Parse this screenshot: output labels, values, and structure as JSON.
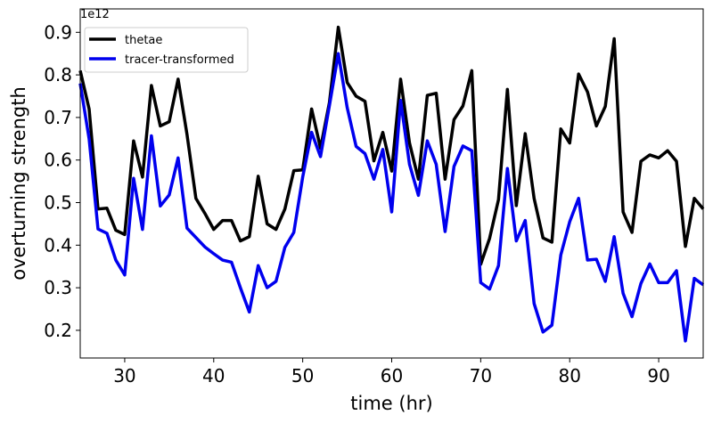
{
  "chart_data": {
    "type": "line",
    "title": "",
    "xlabel": "time (hr)",
    "ylabel": "overturning strength",
    "y_offset_label": "1e12",
    "xlim": [
      25,
      95
    ],
    "ylim": [
      0.135,
      0.955
    ],
    "x_ticks": [
      30,
      40,
      50,
      60,
      70,
      80,
      90
    ],
    "y_ticks": [
      0.2,
      0.3,
      0.4,
      0.5,
      0.6,
      0.7,
      0.8,
      0.9
    ],
    "x_tick_labels": [
      "30",
      "40",
      "50",
      "60",
      "70",
      "80",
      "90"
    ],
    "y_tick_labels": [
      "0.2",
      "0.3",
      "0.4",
      "0.5",
      "0.6",
      "0.7",
      "0.8",
      "0.9"
    ],
    "grid": false,
    "legend_position": "top-left",
    "x": [
      25,
      26,
      27,
      28,
      29,
      30,
      31,
      32,
      33,
      34,
      35,
      36,
      37,
      38,
      39,
      40,
      41,
      42,
      43,
      44,
      45,
      46,
      47,
      48,
      49,
      50,
      51,
      52,
      53,
      54,
      55,
      56,
      57,
      58,
      59,
      60,
      61,
      62,
      63,
      64,
      65,
      66,
      67,
      68,
      69,
      70,
      71,
      72,
      73,
      74,
      75,
      76,
      77,
      78,
      79,
      80,
      81,
      82,
      83,
      84,
      85,
      86,
      87,
      88,
      89,
      90,
      91,
      92,
      93,
      94,
      95
    ],
    "series": [
      {
        "name": "thetae",
        "color": "#000000",
        "values": [
          0.81,
          0.72,
          0.485,
          0.487,
          0.435,
          0.425,
          0.645,
          0.56,
          0.775,
          0.68,
          0.69,
          0.79,
          0.66,
          0.51,
          0.475,
          0.437,
          0.458,
          0.458,
          0.41,
          0.42,
          0.562,
          0.45,
          0.437,
          0.485,
          0.575,
          0.577,
          0.72,
          0.628,
          0.735,
          0.912,
          0.782,
          0.75,
          0.738,
          0.598,
          0.665,
          0.574,
          0.79,
          0.64,
          0.555,
          0.752,
          0.757,
          0.555,
          0.695,
          0.727,
          0.81,
          0.355,
          0.416,
          0.507,
          0.766,
          0.493,
          0.662,
          0.51,
          0.417,
          0.407,
          0.673,
          0.64,
          0.802,
          0.76,
          0.68,
          0.726,
          0.885,
          0.478,
          0.43,
          0.597,
          0.612,
          0.605,
          0.622,
          0.597,
          0.397,
          0.51,
          0.485
        ]
      },
      {
        "name": "tracer-transformed",
        "color": "#0000ee",
        "values": [
          0.78,
          0.65,
          0.438,
          0.428,
          0.365,
          0.33,
          0.557,
          0.437,
          0.657,
          0.492,
          0.518,
          0.605,
          0.44,
          0.418,
          0.396,
          0.38,
          0.365,
          0.36,
          0.3,
          0.243,
          0.352,
          0.3,
          0.315,
          0.395,
          0.43,
          0.56,
          0.665,
          0.608,
          0.728,
          0.85,
          0.723,
          0.632,
          0.615,
          0.555,
          0.625,
          0.478,
          0.74,
          0.59,
          0.517,
          0.645,
          0.59,
          0.432,
          0.585,
          0.633,
          0.622,
          0.312,
          0.297,
          0.352,
          0.58,
          0.41,
          0.458,
          0.263,
          0.196,
          0.212,
          0.377,
          0.455,
          0.51,
          0.365,
          0.367,
          0.315,
          0.42,
          0.287,
          0.232,
          0.31,
          0.356,
          0.312,
          0.312,
          0.34,
          0.175,
          0.322,
          0.307
        ]
      }
    ]
  }
}
